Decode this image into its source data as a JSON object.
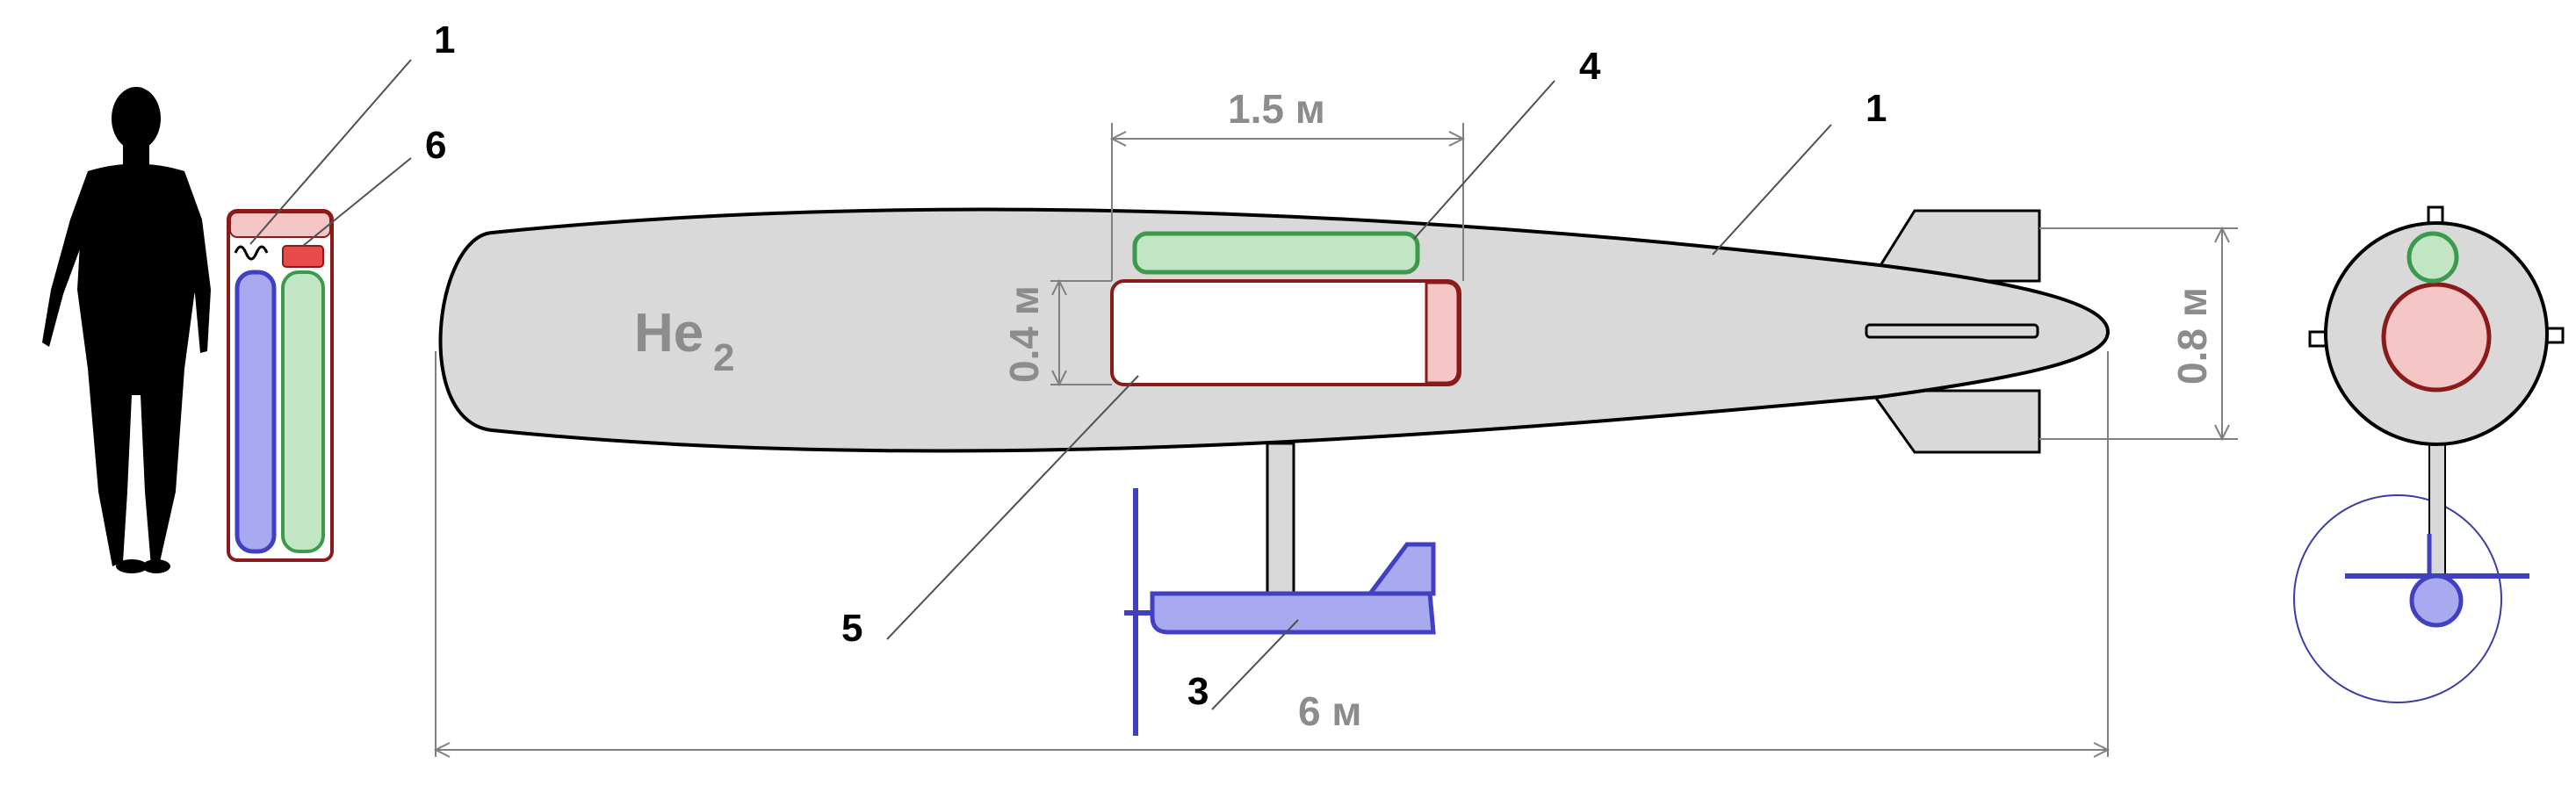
{
  "colors": {
    "hull": "#d9d9d9",
    "outline": "#000000",
    "dim_line": "#808080",
    "red_dark": "#8b1a1a",
    "red_fill": "#f4c6c6",
    "red_bright": "#e84a4a",
    "green_stroke": "#3c9a4c",
    "green_fill": "#c2e6c4",
    "blue_stroke": "#4040c0",
    "blue_fill": "#a9a9ef",
    "gray_text": "#8c8c8c",
    "human": "#000000"
  },
  "labels": {
    "callout_1_left": "1",
    "callout_6": "6",
    "callout_4": "4",
    "callout_1_right": "1",
    "callout_5": "5",
    "callout_3": "3"
  },
  "dimensions": {
    "compartment_length": "1.5 м",
    "compartment_height": "0.4 м",
    "tail_height": "0.8 м",
    "total_length": "6 м"
  },
  "gas": {
    "symbol": "He",
    "subscript": "2"
  }
}
